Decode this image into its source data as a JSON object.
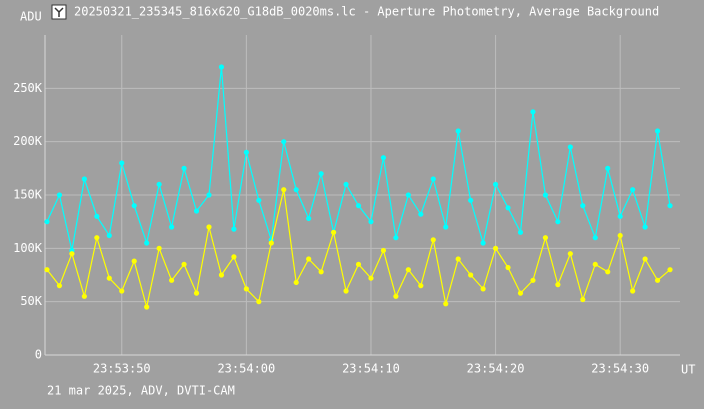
{
  "chart_data": {
    "type": "line",
    "title": "20250321_235345_816x620_G18dB_0020ms.lc - Aperture Photometry, Average Background",
    "y_label": "ADU",
    "x_label": "UT",
    "footer": "21 mar 2025, ADV, DVTI-CAM",
    "x": [
      86024,
      86025,
      86026,
      86027,
      86028,
      86029,
      86030,
      86031,
      86032,
      86033,
      86034,
      86035,
      86036,
      86037,
      86038,
      86039,
      86040,
      86041,
      86042,
      86043,
      86044,
      86045,
      86046,
      86047,
      86048,
      86049,
      86050,
      86051,
      86052,
      86053,
      86054,
      86055,
      86056,
      86057,
      86058,
      86059,
      86060,
      86061,
      86062,
      86063,
      86064,
      86065,
      86066,
      86067,
      86068,
      86069,
      86070,
      86071,
      86072,
      86073,
      86074
    ],
    "series": [
      {
        "color": "#00ffff",
        "values": [
          125000,
          150000,
          98000,
          165000,
          130000,
          112000,
          180000,
          140000,
          105000,
          160000,
          120000,
          175000,
          135000,
          150000,
          270000,
          118000,
          190000,
          145000,
          108000,
          200000,
          155000,
          128000,
          170000,
          115000,
          160000,
          140000,
          125000,
          185000,
          110000,
          150000,
          132000,
          165000,
          120000,
          210000,
          145000,
          105000,
          160000,
          138000,
          115000,
          228000,
          150000,
          125000,
          195000,
          140000,
          110000,
          175000,
          130000,
          155000,
          120000,
          210000,
          140000
        ]
      },
      {
        "color": "#ffff00",
        "values": [
          80000,
          65000,
          95000,
          55000,
          110000,
          72000,
          60000,
          88000,
          45000,
          100000,
          70000,
          85000,
          58000,
          120000,
          75000,
          92000,
          62000,
          50000,
          105000,
          155000,
          68000,
          90000,
          78000,
          115000,
          60000,
          85000,
          72000,
          98000,
          55000,
          80000,
          65000,
          108000,
          48000,
          90000,
          75000,
          62000,
          100000,
          82000,
          58000,
          70000,
          110000,
          66000,
          95000,
          52000,
          85000,
          78000,
          112000,
          60000,
          90000,
          70000,
          80000
        ]
      }
    ],
    "xlim": [
      86023.84,
      86074.8
    ],
    "xticks": [
      {
        "value": 86030,
        "label": "23:53:50"
      },
      {
        "value": 86040,
        "label": "23:54:00"
      },
      {
        "value": 86050,
        "label": "23:54:10"
      },
      {
        "value": 86060,
        "label": "23:54:20"
      },
      {
        "value": 86070,
        "label": "23:54:30"
      }
    ],
    "ylim": [
      0,
      300000
    ],
    "yticks": [
      0,
      {
        "value": 50000,
        "label": "50K"
      },
      {
        "value": 100000,
        "label": "100K"
      },
      {
        "value": 150000,
        "label": "150K"
      },
      {
        "value": 200000,
        "label": "200K"
      },
      {
        "value": 250000,
        "label": "250K"
      }
    ],
    "grid": true
  }
}
